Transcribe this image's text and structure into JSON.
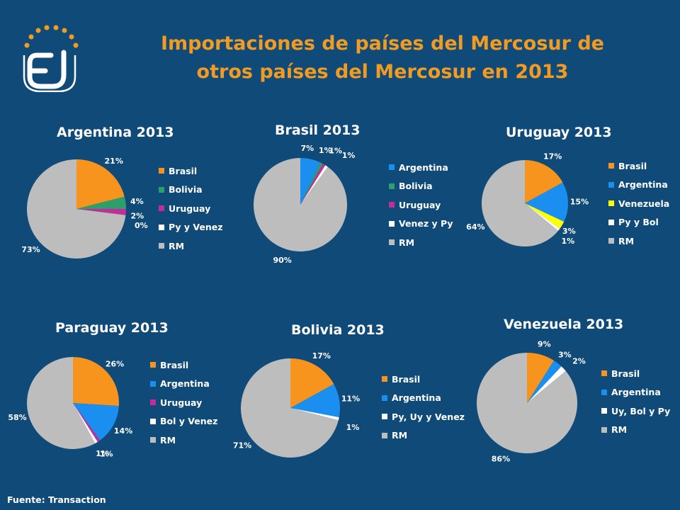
{
  "slide": {
    "title_line1": "Importaciones de países del Mercosur de",
    "title_line2": "otros países del Mercosur en 2013",
    "source": "Fuente: Transaction",
    "title_color": "#f29b22",
    "background_color": "#0f4a78"
  },
  "logo": {
    "text": "EJ",
    "color": "#ffffff",
    "dot_color": "#f29b22"
  },
  "chart_data": [
    {
      "type": "pie",
      "title": "Argentina 2013",
      "categories": [
        "Brasil",
        "Bolivia",
        "Uruguay",
        "Py y Venez",
        "RM"
      ],
      "values": [
        21,
        4,
        2,
        0,
        73
      ],
      "labels": [
        "21%",
        "4%",
        "2%",
        "0%",
        "73%"
      ],
      "colors": [
        "#f7941d",
        "#2e9e6b",
        "#c22d9a",
        "#ffffff",
        "#bdbdbd"
      ]
    },
    {
      "type": "pie",
      "title": "Brasil 2013",
      "categories": [
        "Argentina",
        "Bolivia",
        "Uruguay",
        "Venez y Py",
        "RM"
      ],
      "values": [
        7,
        1,
        1,
        1,
        90
      ],
      "labels": [
        "7%",
        "1%",
        "1%",
        "1%",
        "90%"
      ],
      "colors": [
        "#1a8ff0",
        "#2e9e6b",
        "#c22d9a",
        "#ffffff",
        "#bdbdbd"
      ]
    },
    {
      "type": "pie",
      "title": "Uruguay 2013",
      "categories": [
        "Brasil",
        "Argentina",
        "Venezuela",
        "Py y Bol",
        "RM"
      ],
      "values": [
        17,
        15,
        3,
        1,
        64
      ],
      "labels": [
        "17%",
        "15%",
        "3%",
        "1%",
        "64%"
      ],
      "colors": [
        "#f7941d",
        "#1a8ff0",
        "#ffff00",
        "#ffffff",
        "#bdbdbd"
      ]
    },
    {
      "type": "pie",
      "title": "Paraguay 2013",
      "categories": [
        "Brasil",
        "Argentina",
        "Uruguay",
        "Bol y Venez",
        "RM"
      ],
      "values": [
        26,
        14,
        1,
        1,
        58
      ],
      "labels": [
        "26%",
        "14%",
        "1%",
        "1%",
        "58%"
      ],
      "colors": [
        "#f7941d",
        "#1a8ff0",
        "#c22d9a",
        "#ffffff",
        "#bdbdbd"
      ]
    },
    {
      "type": "pie",
      "title": "Bolivia 2013",
      "categories": [
        "Brasil",
        "Argentina",
        "Py, Uy y Venez",
        "RM"
      ],
      "values": [
        17,
        11,
        1,
        71
      ],
      "labels": [
        "17%",
        "11%",
        "1%",
        "71%"
      ],
      "colors": [
        "#f7941d",
        "#1a8ff0",
        "#ffffff",
        "#bdbdbd"
      ]
    },
    {
      "type": "pie",
      "title": "Venezuela 2013",
      "categories": [
        "Brasil",
        "Argentina",
        "Uy, Bol y Py",
        "RM"
      ],
      "values": [
        9,
        3,
        2,
        86
      ],
      "labels": [
        "9%",
        "3%",
        "2%",
        "86%"
      ],
      "colors": [
        "#f7941d",
        "#1a8ff0",
        "#ffffff",
        "#bdbdbd"
      ]
    }
  ]
}
